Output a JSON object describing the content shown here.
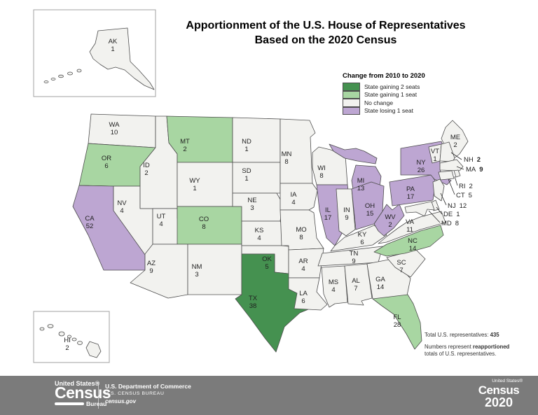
{
  "title": {
    "line1": "Apportionment of the U.S. House of Representatives",
    "line2": "Based on the 2020 Census"
  },
  "legend": {
    "title": "Change from 2010 to 2020",
    "items": [
      {
        "key": "gain2",
        "label": "State gaining 2 seats",
        "color": "#459150"
      },
      {
        "key": "gain1",
        "label": "State gaining 1 seat",
        "color": "#a8d6a2"
      },
      {
        "key": "none",
        "label": "No change",
        "color": "#f2f2ef"
      },
      {
        "key": "lose1",
        "label": "State losing 1 seat",
        "color": "#bda6d2"
      }
    ]
  },
  "notes": {
    "total_prefix": "Total U.S. representatives: ",
    "total_value": "435",
    "line2_pre": "Numbers represent ",
    "line2_bold": "reapportioned",
    "line3": "totals of U.S. representatives."
  },
  "map": {
    "total_representatives": 435,
    "states": [
      {
        "abbr": "WA",
        "seats": 10,
        "change": "none"
      },
      {
        "abbr": "OR",
        "seats": 6,
        "change": "gain1"
      },
      {
        "abbr": "CA",
        "seats": 52,
        "change": "lose1"
      },
      {
        "abbr": "NV",
        "seats": 4,
        "change": "none"
      },
      {
        "abbr": "ID",
        "seats": 2,
        "change": "none"
      },
      {
        "abbr": "MT",
        "seats": 2,
        "change": "gain1"
      },
      {
        "abbr": "WY",
        "seats": 1,
        "change": "none"
      },
      {
        "abbr": "UT",
        "seats": 4,
        "change": "none"
      },
      {
        "abbr": "CO",
        "seats": 8,
        "change": "gain1"
      },
      {
        "abbr": "AZ",
        "seats": 9,
        "change": "none"
      },
      {
        "abbr": "NM",
        "seats": 3,
        "change": "none"
      },
      {
        "abbr": "ND",
        "seats": 1,
        "change": "none"
      },
      {
        "abbr": "SD",
        "seats": 1,
        "change": "none"
      },
      {
        "abbr": "NE",
        "seats": 3,
        "change": "none"
      },
      {
        "abbr": "KS",
        "seats": 4,
        "change": "none"
      },
      {
        "abbr": "OK",
        "seats": 5,
        "change": "none"
      },
      {
        "abbr": "TX",
        "seats": 38,
        "change": "gain2"
      },
      {
        "abbr": "MN",
        "seats": 8,
        "change": "none"
      },
      {
        "abbr": "IA",
        "seats": 4,
        "change": "none"
      },
      {
        "abbr": "MO",
        "seats": 8,
        "change": "none"
      },
      {
        "abbr": "AR",
        "seats": 4,
        "change": "none"
      },
      {
        "abbr": "LA",
        "seats": 6,
        "change": "none"
      },
      {
        "abbr": "WI",
        "seats": 8,
        "change": "none"
      },
      {
        "abbr": "IL",
        "seats": 17,
        "change": "lose1"
      },
      {
        "abbr": "MI",
        "seats": 13,
        "change": "lose1"
      },
      {
        "abbr": "IN",
        "seats": 9,
        "change": "none"
      },
      {
        "abbr": "OH",
        "seats": 15,
        "change": "lose1"
      },
      {
        "abbr": "KY",
        "seats": 6,
        "change": "none"
      },
      {
        "abbr": "TN",
        "seats": 9,
        "change": "none"
      },
      {
        "abbr": "MS",
        "seats": 4,
        "change": "none"
      },
      {
        "abbr": "AL",
        "seats": 7,
        "change": "none"
      },
      {
        "abbr": "GA",
        "seats": 14,
        "change": "none"
      },
      {
        "abbr": "SC",
        "seats": 7,
        "change": "none"
      },
      {
        "abbr": "NC",
        "seats": 14,
        "change": "gain1"
      },
      {
        "abbr": "VA",
        "seats": 11,
        "change": "none"
      },
      {
        "abbr": "WV",
        "seats": 2,
        "change": "lose1"
      },
      {
        "abbr": "PA",
        "seats": 17,
        "change": "lose1"
      },
      {
        "abbr": "NY",
        "seats": 26,
        "change": "lose1"
      },
      {
        "abbr": "ME",
        "seats": 2,
        "change": "none"
      },
      {
        "abbr": "VT",
        "seats": 1,
        "change": "none"
      },
      {
        "abbr": "NH",
        "seats": 2,
        "change": "none",
        "bold_seat": true
      },
      {
        "abbr": "MA",
        "seats": 9,
        "change": "none",
        "bold_seat": true
      },
      {
        "abbr": "RI",
        "seats": 2,
        "change": "none"
      },
      {
        "abbr": "CT",
        "seats": 5,
        "change": "none"
      },
      {
        "abbr": "NJ",
        "seats": 12,
        "change": "none"
      },
      {
        "abbr": "DE",
        "seats": 1,
        "change": "none"
      },
      {
        "abbr": "MD",
        "seats": 8,
        "change": "none"
      },
      {
        "abbr": "FL",
        "seats": 28,
        "change": "gain1"
      },
      {
        "abbr": "AK",
        "seats": 1,
        "change": "none"
      },
      {
        "abbr": "HI",
        "seats": 2,
        "change": "none"
      }
    ]
  },
  "footer": {
    "logo_top": "United States®",
    "logo_main": "Census",
    "logo_bureau": "Bureau",
    "dept_line1": "U.S. Department of Commerce",
    "dept_line2": "U.S. CENSUS BUREAU",
    "dept_line3": "census.gov",
    "logo2020_top": "United States®",
    "logo2020_main": "Census",
    "logo2020_year": "2020"
  }
}
